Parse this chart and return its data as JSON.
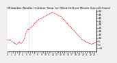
{
  "title": "Milwaukee Weather Outdoor Temp (vs) Wind Chill per Minute (Last 24 Hours)",
  "line_color": "#ff0000",
  "bg_color": "#f0f0f0",
  "plot_bg": "#ffffff",
  "ylim": [
    -10,
    52
  ],
  "ytick_values": [
    50,
    45,
    40,
    35,
    30,
    25,
    20,
    15,
    10,
    5,
    0,
    -5
  ],
  "ylabel_fontsize": 3.0,
  "title_fontsize": 2.8,
  "vline_x": 34,
  "temp_data": [
    8,
    7,
    6,
    7,
    8,
    7,
    6,
    5,
    4,
    4,
    3,
    3,
    2,
    2,
    1,
    1,
    2,
    3,
    4,
    4,
    3,
    3,
    2,
    3,
    4,
    5,
    7,
    9,
    12,
    15,
    18,
    20,
    22,
    24,
    22,
    23,
    24,
    25,
    26,
    27,
    28,
    29,
    30,
    31,
    32,
    33,
    34,
    35,
    36,
    37,
    37,
    38,
    38,
    39,
    39,
    40,
    40,
    41,
    41,
    42,
    42,
    43,
    43,
    44,
    44,
    45,
    45,
    46,
    46,
    47,
    47,
    48,
    48,
    48,
    48,
    47,
    47,
    46,
    46,
    45,
    45,
    44,
    44,
    43,
    43,
    42,
    42,
    41,
    40,
    39,
    38,
    37,
    36,
    35,
    34,
    33,
    32,
    31,
    30,
    29,
    28,
    27,
    26,
    25,
    24,
    23,
    22,
    21,
    20,
    19,
    18,
    17,
    16,
    15,
    14,
    13,
    12,
    11,
    10,
    9,
    8,
    7,
    7,
    6,
    6,
    5,
    5,
    4,
    4,
    3,
    3,
    3,
    2,
    2,
    2,
    1,
    1,
    1,
    2,
    2,
    3,
    3,
    3,
    4
  ],
  "n_xticks": 48,
  "xtick_label_fontsize": 2.2,
  "line_width": 0.55,
  "dash_pattern": [
    2.5,
    1.2
  ]
}
